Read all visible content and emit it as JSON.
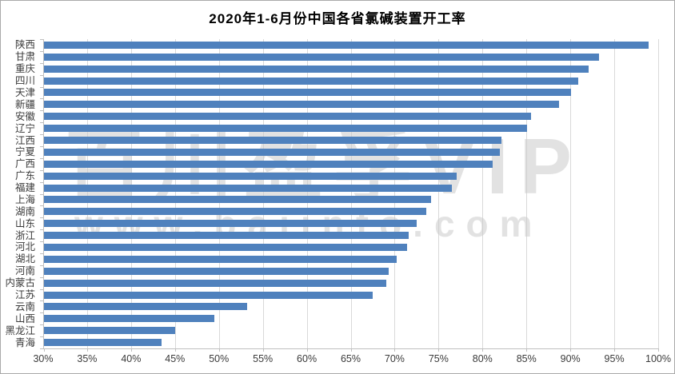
{
  "window": {
    "background": "#ffffff",
    "border_color": "#a9a9a9"
  },
  "chart_data": {
    "type": "bar",
    "orientation": "horizontal",
    "title": "2020年1-6月份中国各省氯碱装置开工率",
    "categories": [
      "陕西",
      "甘肃",
      "重庆",
      "四川",
      "天津",
      "新疆",
      "安徽",
      "辽宁",
      "江西",
      "宁夏",
      "广西",
      "广东",
      "福建",
      "上海",
      "湖南",
      "山东",
      "浙江",
      "河北",
      "湖北",
      "河南",
      "内蒙古",
      "江苏",
      "云南",
      "山西",
      "黑龙江",
      "青海"
    ],
    "values": [
      98.8,
      93.2,
      92.0,
      90.8,
      90.0,
      88.6,
      85.4,
      85.0,
      82.1,
      81.9,
      81.1,
      77.0,
      76.4,
      74.1,
      73.5,
      72.4,
      71.5,
      71.3,
      70.1,
      69.2,
      69.0,
      67.4,
      53.1,
      49.4,
      44.9,
      43.4
    ],
    "value_unit": "%",
    "xlim": [
      30,
      100
    ],
    "x_tick_step": 5,
    "x_tick_labels": [
      "30%",
      "35%",
      "40%",
      "45%",
      "50%",
      "55%",
      "60%",
      "65%",
      "70%",
      "75%",
      "80%",
      "85%",
      "90%",
      "95%",
      "100%"
    ],
    "grid": "vertical",
    "legend": "none",
    "bar_color": "#4f81bd",
    "gridline_color": "#d9d9d9",
    "axis_color": "#bfbfbf",
    "label_color": "#3a3a3a",
    "title_color": "#000000"
  },
  "watermark": {
    "line1": "百川盈孚VIP",
    "line2": "www.baiinfo.com",
    "color": "#cccccc"
  }
}
